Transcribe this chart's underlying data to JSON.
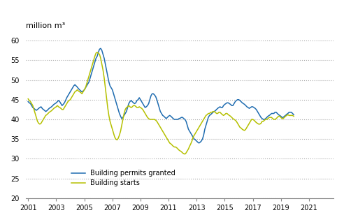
{
  "title": "million m³",
  "ylim": [
    20,
    60
  ],
  "yticks": [
    20,
    25,
    30,
    35,
    40,
    45,
    50,
    55,
    60
  ],
  "xlim_start": 2001.0,
  "xlim_end": 2022.75,
  "xtick_years": [
    2001,
    2003,
    2005,
    2007,
    2009,
    2011,
    2013,
    2015,
    2017,
    2019,
    2021
  ],
  "legend_labels": [
    "Building permits granted",
    "Building starts"
  ],
  "line1_color": "#1f6cb0",
  "line2_color": "#b5c000",
  "background_color": "#ffffff",
  "permits": [
    44.5,
    44.2,
    44.0,
    43.5,
    43.0,
    42.8,
    42.5,
    42.3,
    42.5,
    42.8,
    43.0,
    43.2,
    42.8,
    42.5,
    42.3,
    42.0,
    42.2,
    42.5,
    42.8,
    43.0,
    43.2,
    43.5,
    43.8,
    44.0,
    44.2,
    44.5,
    44.8,
    44.5,
    44.0,
    43.5,
    43.8,
    44.2,
    44.8,
    45.5,
    46.0,
    46.5,
    47.0,
    47.5,
    48.0,
    48.5,
    48.8,
    48.5,
    48.2,
    47.8,
    47.5,
    47.2,
    47.0,
    47.2,
    47.5,
    48.0,
    48.5,
    49.0,
    49.5,
    50.5,
    51.5,
    52.5,
    53.5,
    54.5,
    55.5,
    56.0,
    57.0,
    57.8,
    58.0,
    57.5,
    56.5,
    55.5,
    54.0,
    52.5,
    51.0,
    49.5,
    48.5,
    48.0,
    47.5,
    46.5,
    45.5,
    44.5,
    43.5,
    42.5,
    41.5,
    40.8,
    40.2,
    40.5,
    41.0,
    41.5,
    42.0,
    43.0,
    44.0,
    44.5,
    44.8,
    44.5,
    44.2,
    44.0,
    44.2,
    44.8,
    45.0,
    45.5,
    45.0,
    44.5,
    44.0,
    43.5,
    43.0,
    43.2,
    43.5,
    44.0,
    45.0,
    46.0,
    46.5,
    46.5,
    46.2,
    45.8,
    45.0,
    44.0,
    43.0,
    42.0,
    41.5,
    41.0,
    40.8,
    40.5,
    40.2,
    40.5,
    40.8,
    41.0,
    40.8,
    40.5,
    40.2,
    40.0,
    40.0,
    40.0,
    40.0,
    40.2,
    40.3,
    40.5,
    40.5,
    40.2,
    40.0,
    39.5,
    38.5,
    37.5,
    37.0,
    36.5,
    36.0,
    35.5,
    35.0,
    34.8,
    34.5,
    34.2,
    34.0,
    34.2,
    34.5,
    35.0,
    36.0,
    37.5,
    38.5,
    39.5,
    40.5,
    41.0,
    41.2,
    41.5,
    41.8,
    42.0,
    42.2,
    42.5,
    42.8,
    43.0,
    43.2,
    43.0,
    43.0,
    43.5,
    43.8,
    44.0,
    44.2,
    44.2,
    44.0,
    43.8,
    43.5,
    43.5,
    44.0,
    44.5,
    44.8,
    45.0,
    45.0,
    44.8,
    44.5,
    44.2,
    44.0,
    43.8,
    43.5,
    43.2,
    43.0,
    42.8,
    43.0,
    43.2,
    43.2,
    43.0,
    42.8,
    42.5,
    42.0,
    41.5,
    41.0,
    40.5,
    40.2,
    40.0,
    40.0,
    40.2,
    40.5,
    40.8,
    41.0,
    41.2,
    41.5,
    41.5,
    41.5,
    41.8,
    41.8,
    41.5,
    41.2,
    41.0,
    40.8,
    40.5,
    40.5,
    40.8,
    41.0,
    41.3,
    41.5,
    41.8,
    41.8,
    41.8,
    41.5,
    41.2
  ],
  "starts": [
    45.2,
    44.8,
    44.5,
    44.0,
    43.5,
    42.5,
    41.5,
    40.5,
    39.5,
    39.0,
    38.8,
    39.0,
    39.5,
    40.0,
    40.5,
    41.0,
    41.2,
    41.5,
    41.8,
    42.0,
    42.2,
    42.5,
    42.8,
    43.0,
    43.2,
    43.5,
    43.2,
    43.0,
    42.8,
    42.5,
    42.5,
    43.0,
    43.5,
    44.0,
    44.5,
    44.8,
    45.0,
    45.5,
    46.0,
    46.5,
    47.0,
    47.2,
    47.5,
    47.2,
    47.0,
    46.8,
    46.5,
    47.0,
    47.5,
    48.0,
    49.0,
    50.0,
    51.0,
    52.0,
    53.0,
    54.0,
    55.0,
    56.0,
    56.8,
    57.0,
    56.8,
    56.5,
    55.5,
    54.0,
    52.5,
    50.5,
    48.0,
    45.5,
    43.0,
    41.0,
    39.5,
    38.5,
    37.5,
    36.5,
    35.5,
    35.0,
    34.8,
    35.2,
    36.0,
    37.0,
    38.5,
    40.0,
    41.5,
    42.5,
    43.0,
    43.2,
    43.5,
    43.2,
    43.0,
    43.2,
    43.5,
    43.5,
    43.3,
    43.0,
    43.0,
    43.2,
    43.0,
    42.8,
    42.5,
    42.0,
    41.5,
    41.0,
    40.5,
    40.2,
    40.0,
    40.0,
    40.0,
    40.0,
    40.0,
    39.8,
    39.5,
    39.0,
    38.5,
    38.0,
    37.5,
    37.0,
    36.5,
    36.0,
    35.5,
    35.0,
    34.5,
    34.0,
    33.8,
    33.5,
    33.2,
    33.0,
    33.0,
    32.8,
    32.5,
    32.2,
    32.0,
    31.8,
    31.5,
    31.3,
    31.2,
    31.5,
    32.0,
    32.5,
    33.2,
    33.8,
    34.5,
    35.5,
    36.0,
    36.5,
    37.0,
    37.5,
    38.0,
    38.5,
    39.0,
    39.5,
    40.0,
    40.5,
    41.0,
    41.2,
    41.5,
    41.5,
    41.8,
    41.8,
    42.0,
    42.0,
    41.8,
    41.5,
    41.5,
    41.8,
    41.8,
    41.5,
    41.2,
    41.0,
    41.2,
    41.5,
    41.5,
    41.2,
    41.0,
    40.8,
    40.5,
    40.2,
    40.0,
    39.8,
    39.5,
    39.0,
    38.5,
    38.0,
    37.8,
    37.5,
    37.3,
    37.2,
    37.5,
    38.0,
    38.5,
    39.0,
    39.5,
    40.0,
    40.0,
    39.8,
    39.5,
    39.2,
    39.0,
    38.8,
    38.8,
    39.0,
    39.5,
    39.5,
    39.8,
    40.0,
    40.0,
    40.2,
    40.5,
    40.5,
    40.5,
    40.2,
    40.0,
    40.0,
    40.2,
    40.5,
    40.8,
    40.8,
    40.5,
    40.2,
    40.2,
    40.5,
    40.8,
    41.0,
    41.2,
    41.0,
    41.0,
    41.0,
    41.0,
    40.8
  ]
}
